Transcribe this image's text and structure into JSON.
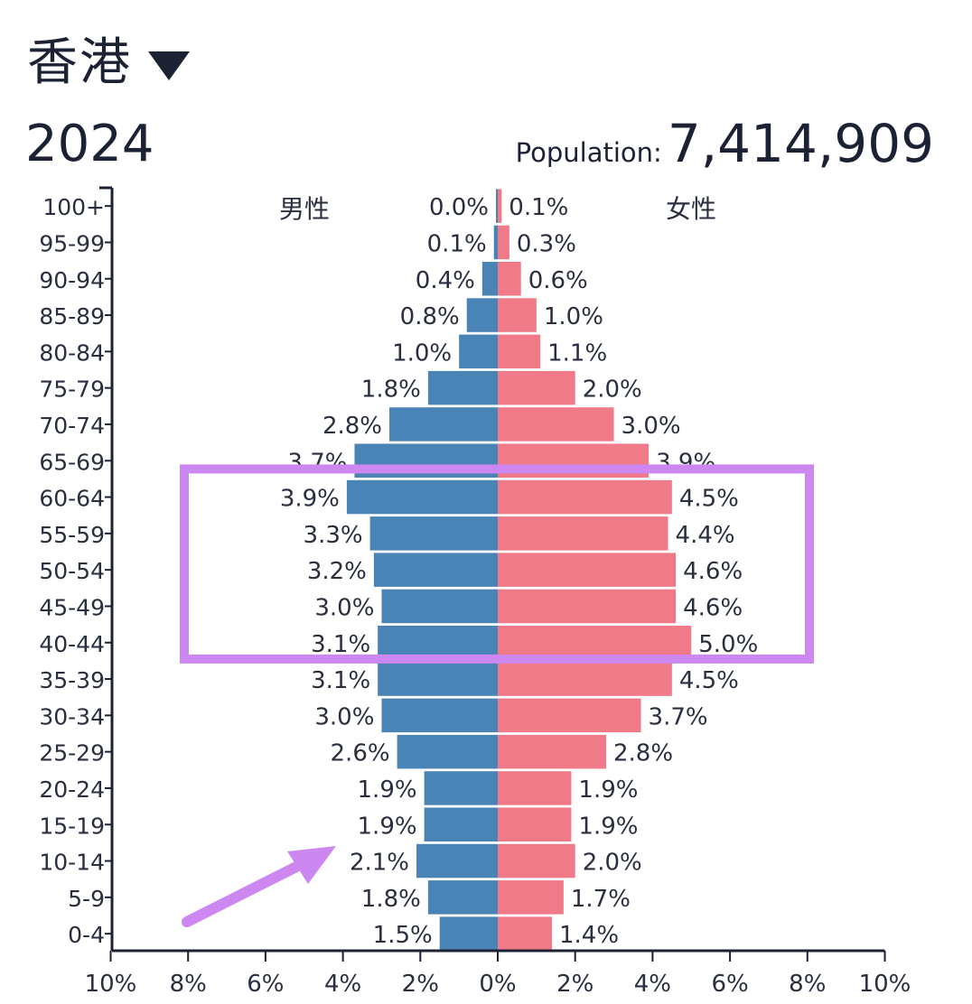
{
  "header": {
    "region": "香港",
    "year": "2024",
    "population_label": "Population:",
    "population_value": "7,414,909",
    "dropdown_icon": "caret-down-icon"
  },
  "chart_data": {
    "type": "bar",
    "orientation": "horizontal-population-pyramid",
    "categories": [
      "100+",
      "95-99",
      "90-94",
      "85-89",
      "80-84",
      "75-79",
      "70-74",
      "65-69",
      "60-64",
      "55-59",
      "50-54",
      "45-49",
      "40-44",
      "35-39",
      "30-34",
      "25-29",
      "20-24",
      "15-19",
      "10-14",
      "5-9",
      "0-4"
    ],
    "series": [
      {
        "name": "男性",
        "color": "#4a84b6",
        "values": [
          0.0,
          0.1,
          0.4,
          0.8,
          1.0,
          1.8,
          2.8,
          3.7,
          3.9,
          3.3,
          3.2,
          3.0,
          3.1,
          3.1,
          3.0,
          2.6,
          1.9,
          1.9,
          2.1,
          1.8,
          1.5
        ],
        "labels": [
          "0.0%",
          "0.1%",
          "0.4%",
          "0.8%",
          "1.0%",
          "1.8%",
          "2.8%",
          "3.7%",
          "3.9%",
          "3.3%",
          "3.2%",
          "3.0%",
          "3.1%",
          "3.1%",
          "3.0%",
          "2.6%",
          "1.9%",
          "1.9%",
          "2.1%",
          "1.8%",
          "1.5%"
        ]
      },
      {
        "name": "女性",
        "color": "#f07a87",
        "values": [
          0.1,
          0.3,
          0.6,
          1.0,
          1.1,
          2.0,
          3.0,
          3.9,
          4.5,
          4.4,
          4.6,
          4.6,
          5.0,
          4.5,
          3.7,
          2.8,
          1.9,
          1.9,
          2.0,
          1.7,
          1.4
        ],
        "labels": [
          "0.1%",
          "0.3%",
          "0.6%",
          "1.0%",
          "1.1%",
          "2.0%",
          "3.0%",
          "3.9%",
          "4.5%",
          "4.4%",
          "4.6%",
          "4.6%",
          "5.0%",
          "4.5%",
          "3.7%",
          "2.8%",
          "1.9%",
          "1.9%",
          "2.0%",
          "1.7%",
          "1.4%"
        ]
      }
    ],
    "xlim": [
      -10,
      10
    ],
    "x_ticks": [
      "10%",
      "8%",
      "6%",
      "4%",
      "2%",
      "0%",
      "2%",
      "4%",
      "6%",
      "8%",
      "10%"
    ],
    "annotation_color": "#cc88f0"
  }
}
